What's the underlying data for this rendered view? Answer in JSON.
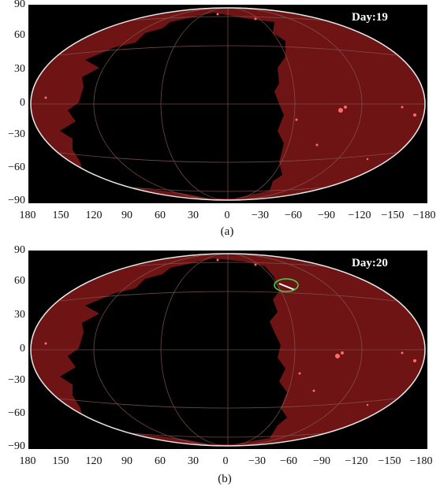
{
  "panels": [
    {
      "id": "a",
      "day_label": "Day:19",
      "caption": "(a)",
      "highlight": false
    },
    {
      "id": "b",
      "day_label": "Day:20",
      "caption": "(b)",
      "highlight": true,
      "highlight_lon": -60,
      "highlight_lat": 66
    }
  ],
  "axes": {
    "y_ticks": [
      "90",
      "60",
      "30",
      "0",
      "−30",
      "−60",
      "−90"
    ],
    "x_ticks": [
      "180",
      "150",
      "120",
      "90",
      "60",
      "30",
      "0",
      "−30",
      "−60",
      "−90",
      "−120",
      "−150",
      "−180"
    ]
  },
  "colors": {
    "sky": "#6e1414",
    "background": "#000000",
    "outline": "#e8e8e8",
    "grid": "#8a5a5a",
    "highlight": "#4ccf4c"
  }
}
